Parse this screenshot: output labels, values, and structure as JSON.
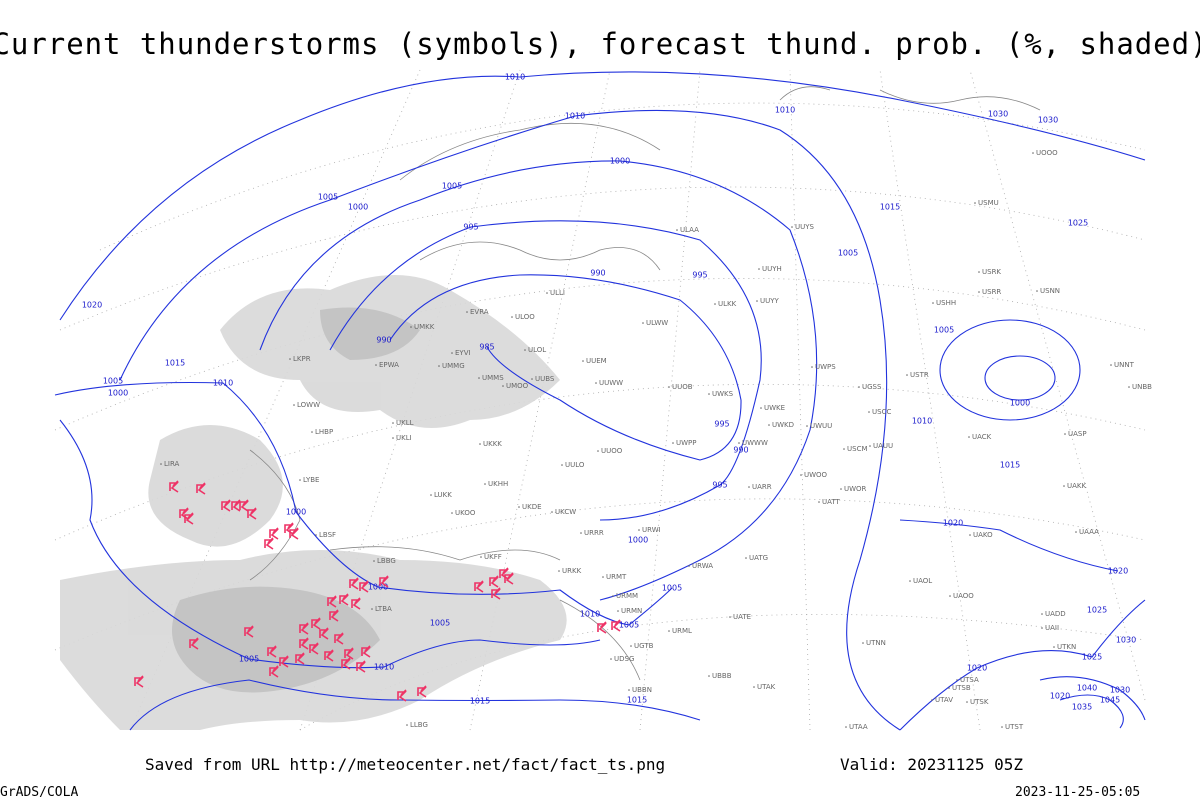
{
  "title": "Current thunderstorms (symbols), forecast thund. prob. (%, shaded)",
  "footer": {
    "source": "Saved from URL http://meteocenter.net/fact/fact_ts.png",
    "valid": "Valid: 20231125 05Z",
    "software": "GrADS/COLA",
    "timestamp": "2023-11-25-05:05"
  },
  "isobar_labels": [
    1010,
    1010,
    1010,
    1030,
    1030,
    1000,
    1005,
    1005,
    1000,
    995,
    1015,
    1025,
    990,
    995,
    1005,
    1020,
    1005,
    990,
    985,
    1015,
    1005,
    1010,
    1000,
    1000,
    995,
    990,
    1010,
    1015,
    995,
    1000,
    1000,
    1020,
    1000,
    1005,
    1005,
    1010,
    1005,
    1005,
    1010,
    1020,
    1015,
    1015,
    1020,
    1025,
    1030,
    1025,
    1040,
    1030,
    1045,
    1035,
    1020
  ],
  "station_labels": [
    "ULAA",
    "UUYS",
    "UUYH",
    "ULLI",
    "ULOO",
    "UUYY",
    "ULKK",
    "ULWW",
    "UMKK",
    "EVRA",
    "EYVI",
    "UMMG",
    "ULOL",
    "UUEM",
    "UUWW",
    "EPWA",
    "UMMS",
    "UMOO",
    "UUBS",
    "UUOB",
    "UWKS",
    "UWKE",
    "UWKD",
    "UWUU",
    "UWPS",
    "UGSS",
    "USTR",
    "UNBB",
    "UNNT",
    "USHH",
    "USRK",
    "USRR",
    "USNN",
    "USMU",
    "UOOO",
    "UKLL",
    "UKLI",
    "LHBP",
    "UKKK",
    "UUOO",
    "UWPP",
    "UWWW",
    "UKHH",
    "LBSF",
    "LBBG",
    "LTBA",
    "URKK",
    "URMT",
    "URMM",
    "URMN",
    "UKFF",
    "UKDE",
    "UKCW",
    "URRR",
    "URWI",
    "URWA",
    "UATG",
    "UATE",
    "UARR",
    "UATT",
    "UWOO",
    "UWOR",
    "UAUU",
    "USCC",
    "USCM",
    "UACK",
    "UASP",
    "UAKK",
    "UAAA",
    "UAKO",
    "UAOL",
    "UAOO",
    "UADD",
    "UAII",
    "UTKN",
    "UTNN",
    "UTSA",
    "UTSB",
    "UTAV",
    "UTSK",
    "UTST",
    "UTAA",
    "UTAK",
    "UBBB",
    "URML",
    "UGTB",
    "UDSG",
    "UBBN",
    "LLBG",
    "LIRA",
    "LKPR",
    "LOWW",
    "LYBE",
    "LUKK",
    "UKOO",
    "UULO"
  ]
}
